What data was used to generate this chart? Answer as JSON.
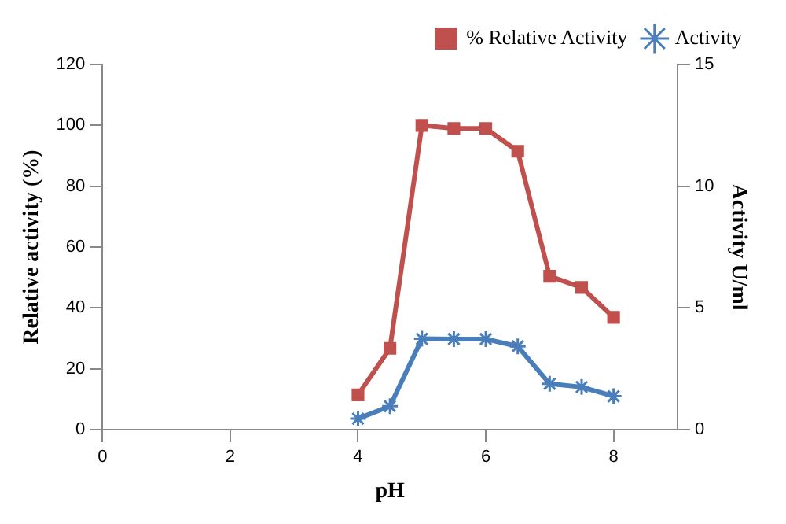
{
  "chart_data": {
    "type": "line",
    "xlabel": "pH",
    "ylabel": "Relative activity (%)",
    "y2label": "Activity U/ml",
    "x": [
      4,
      4.5,
      5,
      5.5,
      6,
      6.5,
      7,
      7.5,
      8
    ],
    "series": [
      {
        "name": "% Relative Activity",
        "color": "#c0504d",
        "marker": "square",
        "values": [
          11.4,
          26.7,
          100,
          99,
          99,
          91.5,
          50.4,
          46.7,
          36.9
        ]
      },
      {
        "name": "Activity",
        "color": "#4a7ebb",
        "marker": "cross",
        "axis": "y2",
        "values": [
          0.45,
          0.96,
          3.73,
          3.72,
          3.72,
          3.42,
          1.88,
          1.75,
          1.37
        ]
      }
    ],
    "xlim": [
      0,
      9
    ],
    "xticks": [
      0,
      2,
      4,
      6,
      8
    ],
    "ylim": [
      0,
      120
    ],
    "yticks": [
      0,
      20,
      40,
      60,
      80,
      100,
      120
    ],
    "y2lim": [
      0,
      15
    ],
    "y2ticks": [
      0,
      5,
      10,
      15
    ],
    "grid": false,
    "legend": "top right",
    "line_style": "solid"
  }
}
